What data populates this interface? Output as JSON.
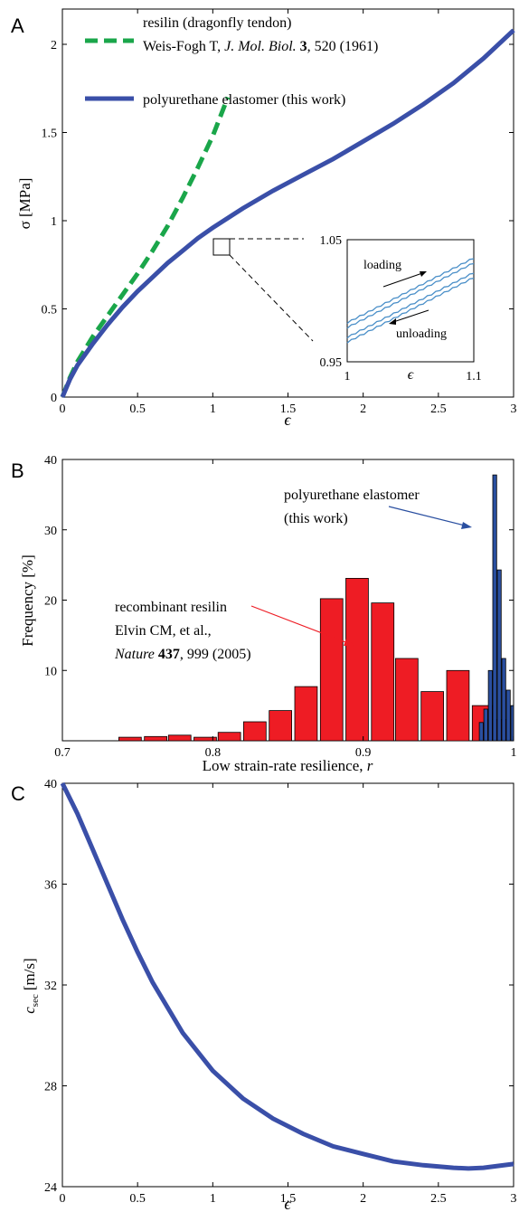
{
  "chart_data": [
    {
      "panel": "A",
      "type": "line",
      "xlabel": "ϵ",
      "ylabel": "σ [MPa]",
      "xlim": [
        0,
        3
      ],
      "ylim": [
        0,
        2.2
      ],
      "xticks": [
        "0",
        "0.5",
        "1",
        "1.5",
        "2",
        "2.5",
        "3"
      ],
      "yticks": [
        "0",
        "0.5",
        "1",
        "1.5",
        "2"
      ],
      "legend_position": "top-left",
      "legend": [
        {
          "line1": "resilin (dragonfly tendon)",
          "line2_plain1": "Weis-Fogh T, ",
          "line2_italic": "J. Mol. Biol.",
          "line2_bold": " 3",
          "line2_plain2": ", 520 (1961)"
        },
        {
          "line1": "polyurethane elastomer (this work)"
        }
      ],
      "series": [
        {
          "name": "resilin (dragonfly tendon)",
          "color": "#1aa64a",
          "style": "dashed",
          "x": [
            0,
            0.05,
            0.1,
            0.2,
            0.3,
            0.4,
            0.5,
            0.6,
            0.7,
            0.8,
            0.9,
            1.0,
            1.1
          ],
          "y": [
            0,
            0.11,
            0.2,
            0.34,
            0.46,
            0.58,
            0.7,
            0.83,
            0.97,
            1.13,
            1.3,
            1.48,
            1.7
          ]
        },
        {
          "name": "polyurethane elastomer (this work)",
          "color": "#3a4fa8",
          "style": "solid",
          "x": [
            0,
            0.05,
            0.1,
            0.2,
            0.3,
            0.4,
            0.5,
            0.6,
            0.7,
            0.8,
            0.9,
            1.0,
            1.2,
            1.4,
            1.6,
            1.8,
            2.0,
            2.2,
            2.4,
            2.6,
            2.8,
            3.0
          ],
          "y": [
            0,
            0.1,
            0.18,
            0.3,
            0.41,
            0.51,
            0.6,
            0.68,
            0.76,
            0.83,
            0.9,
            0.96,
            1.07,
            1.17,
            1.26,
            1.35,
            1.45,
            1.55,
            1.66,
            1.78,
            1.92,
            2.08
          ]
        }
      ],
      "inset": {
        "xlabel": "ϵ",
        "xlim": [
          1,
          1.1
        ],
        "ylim": [
          0.95,
          1.05
        ],
        "xticks": [
          "1",
          "1.1"
        ],
        "yticks": [
          "0.95",
          "1.05"
        ],
        "annotations": [
          "loading",
          "unloading"
        ],
        "color": "#4a8fc8",
        "loading": {
          "x": [
            1,
            1.1
          ],
          "y": [
            0.978,
            1.031
          ]
        },
        "loading_b": {
          "x": [
            1,
            1.1
          ],
          "y": [
            0.982,
            1.035
          ]
        },
        "unloading": {
          "x": [
            1,
            1.1
          ],
          "y": [
            0.97,
            1.023
          ]
        },
        "unloading_b": {
          "x": [
            1,
            1.1
          ],
          "y": [
            0.966,
            1.019
          ]
        }
      }
    },
    {
      "panel": "B",
      "type": "bar",
      "xlabel_text": "Low strain-rate resilience, ",
      "xlabel_var": "r",
      "ylabel": "Frequency [%]",
      "xlim": [
        0.7,
        1
      ],
      "ylim": [
        0,
        40
      ],
      "xticks": [
        "0.7",
        "0.8",
        "0.9",
        "1"
      ],
      "yticks": [
        "10",
        "20",
        "30",
        "40"
      ],
      "annotation_red": {
        "line1": "recombinant resilin",
        "line2": "Elvin CM, et al.,",
        "line3_italic": "Nature",
        "line3_bold": " 437",
        "line3_plain": ", 999 (2005)"
      },
      "annotation_blue": {
        "line1": "polyurethane elastomer",
        "line2": "(this work)"
      },
      "series": [
        {
          "name": "recombinant resilin",
          "color": "#ee1c24",
          "x": [
            0.745,
            0.762,
            0.778,
            0.795,
            0.811,
            0.828,
            0.845,
            0.862,
            0.879,
            0.896,
            0.913,
            0.929,
            0.946,
            0.963,
            0.98,
            0.99
          ],
          "values": [
            0.5,
            0.6,
            0.8,
            0.5,
            1.2,
            2.7,
            4.3,
            7.7,
            20.2,
            23.1,
            19.6,
            11.7,
            7.0,
            10.0,
            5.0,
            3.0
          ]
        },
        {
          "name": "polyurethane elastomer",
          "color": "#2a4fa0",
          "x": [
            0.9785,
            0.9815,
            0.9845,
            0.9875,
            0.9905,
            0.9935,
            0.9965,
            0.9995
          ],
          "values": [
            2.6,
            4.5,
            10.0,
            37.8,
            24.3,
            11.7,
            7.2,
            5.0
          ]
        }
      ]
    },
    {
      "panel": "C",
      "type": "line",
      "xlabel": "ϵ",
      "ylabel_base": "c",
      "ylabel_sub": "sec",
      "ylabel_unit": "[m/s]",
      "xlim": [
        0,
        3
      ],
      "ylim": [
        24,
        40
      ],
      "xticks": [
        "0",
        "0.5",
        "1",
        "1.5",
        "2",
        "2.5",
        "3"
      ],
      "yticks": [
        "24",
        "28",
        "32",
        "36",
        "40"
      ],
      "series": [
        {
          "name": "polyurethane elastomer",
          "color": "#3a4fa8",
          "x": [
            0,
            0.1,
            0.2,
            0.3,
            0.4,
            0.5,
            0.6,
            0.8,
            1.0,
            1.2,
            1.4,
            1.6,
            1.8,
            2.0,
            2.2,
            2.4,
            2.6,
            2.7,
            2.8,
            3.0
          ],
          "y": [
            40,
            38.8,
            37.4,
            36.0,
            34.6,
            33.3,
            32.1,
            30.1,
            28.6,
            27.5,
            26.7,
            26.1,
            25.6,
            25.3,
            25.0,
            24.85,
            24.75,
            24.72,
            24.75,
            24.9
          ]
        }
      ]
    }
  ],
  "panel_labels": [
    "A",
    "B",
    "C"
  ]
}
